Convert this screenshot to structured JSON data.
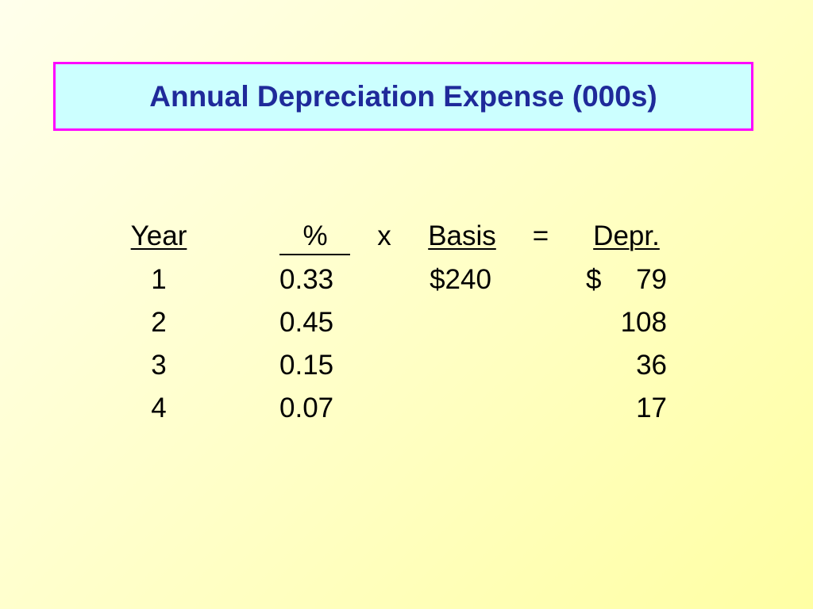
{
  "title": "Annual Depreciation Expense (000s)",
  "table": {
    "header": {
      "year": "Year",
      "percent": "%",
      "times": "x",
      "basis": "Basis",
      "equals": "=",
      "depr": "Depr."
    },
    "rows": [
      {
        "year": "1",
        "percent": "0.33",
        "basis": "$240",
        "currency": "$",
        "depr": "79"
      },
      {
        "year": "2",
        "percent": "0.45",
        "depr": "108"
      },
      {
        "year": "3",
        "percent": "0.15",
        "depr": "36"
      },
      {
        "year": "4",
        "percent": "0.07",
        "depr": "17"
      }
    ]
  }
}
